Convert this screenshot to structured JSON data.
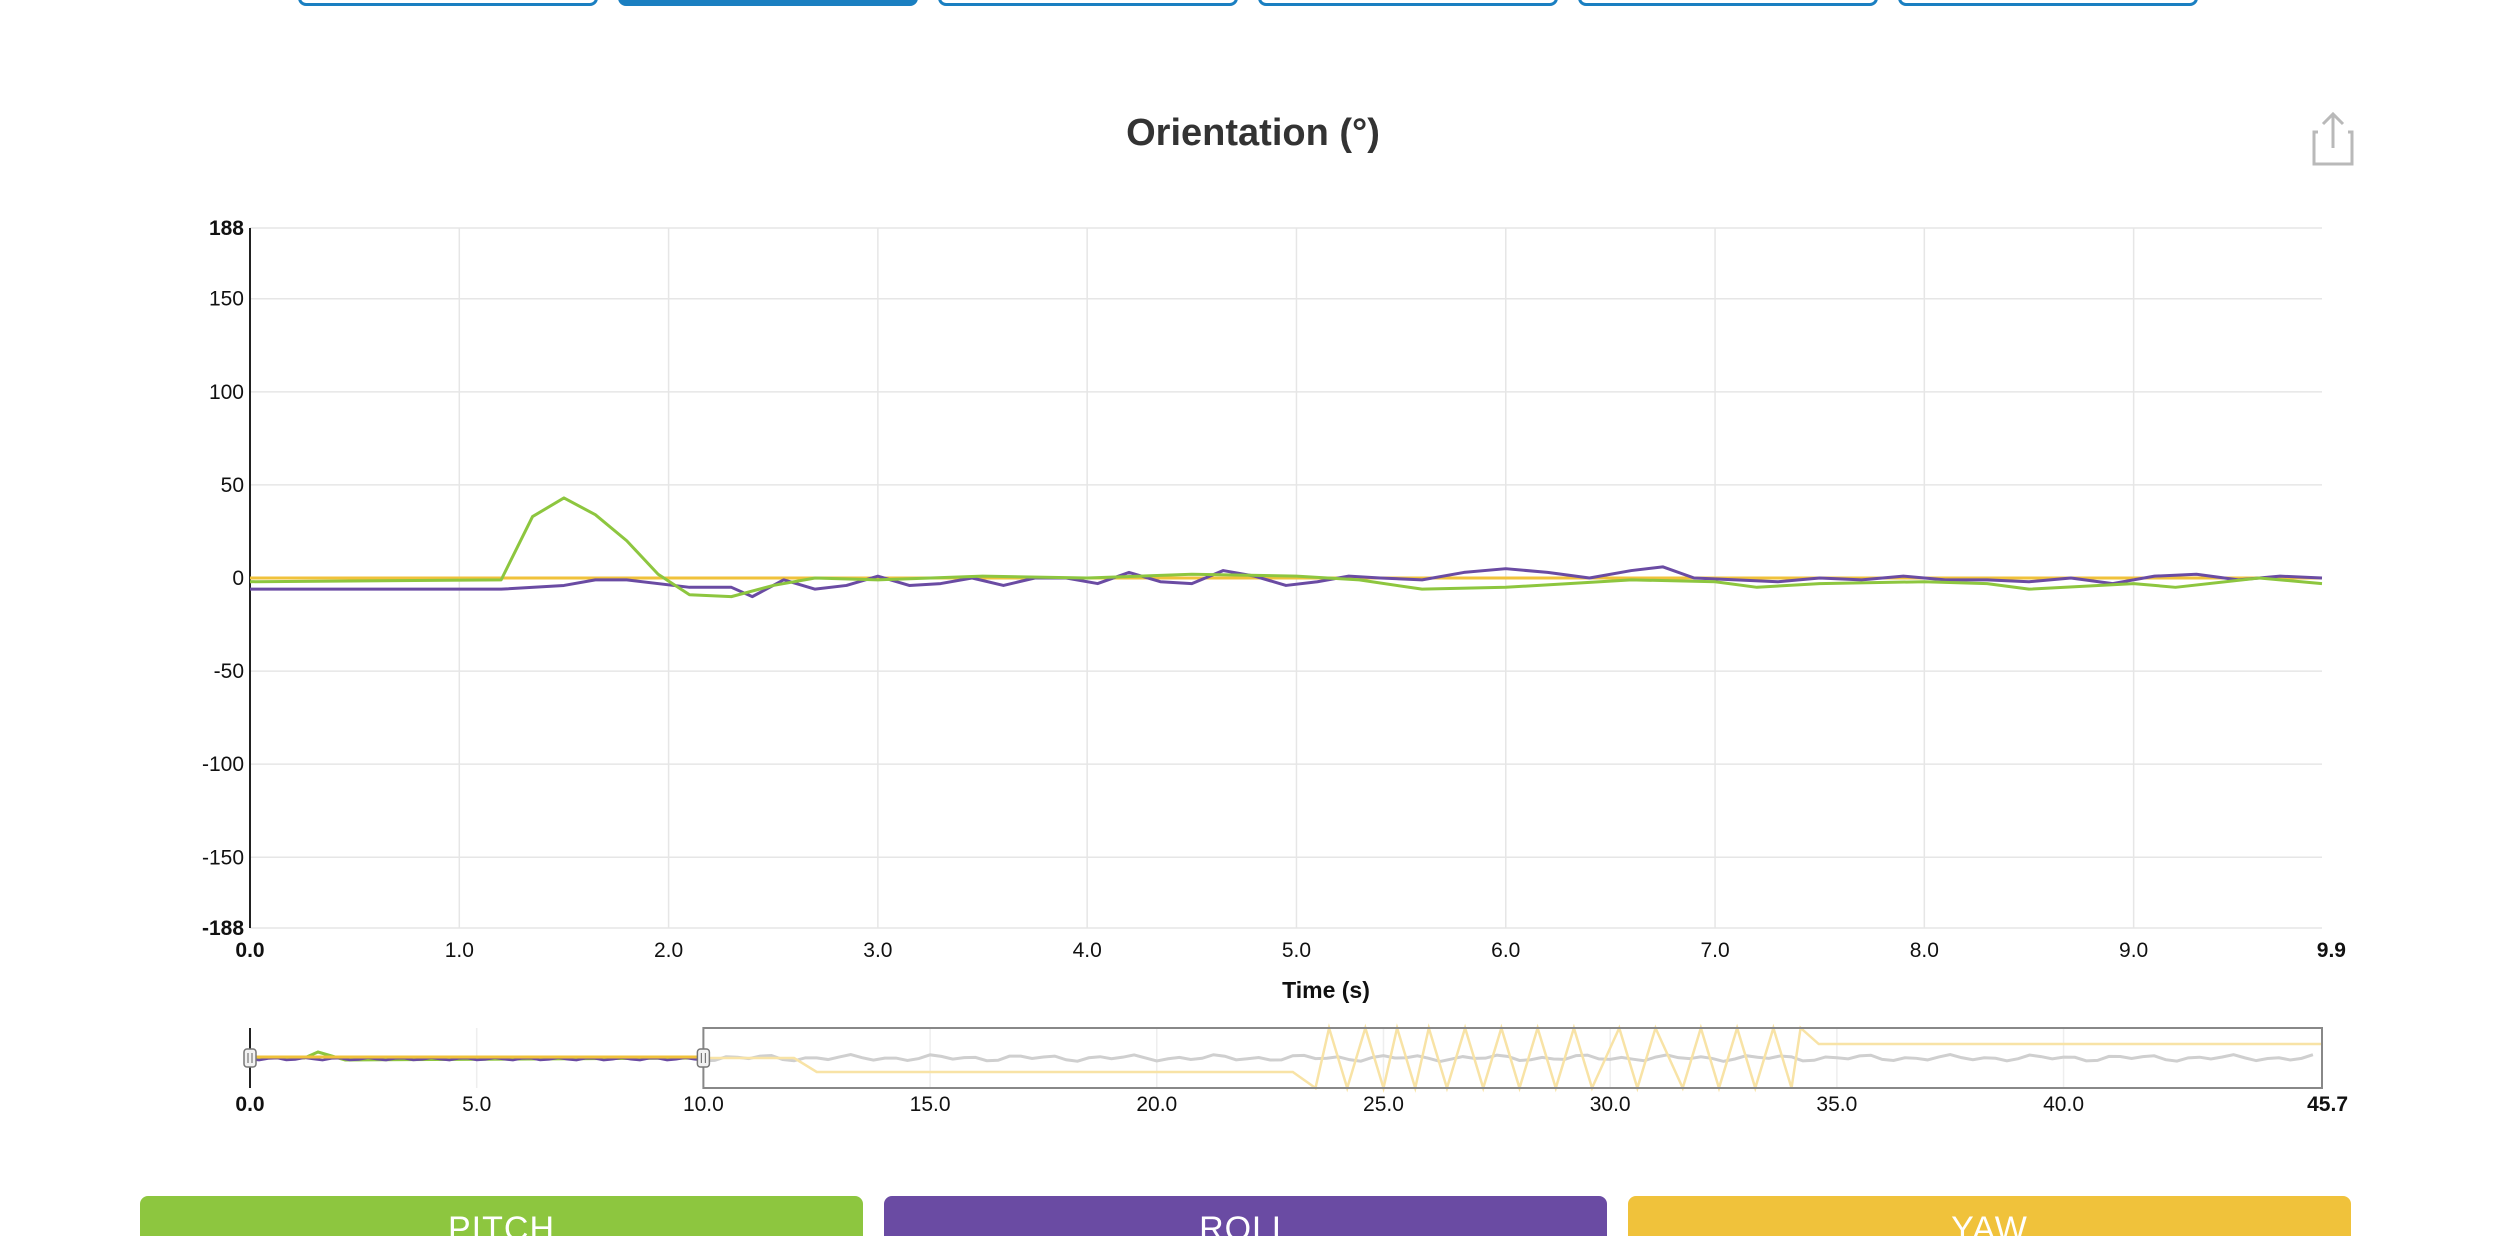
{
  "tabs": [
    {
      "active": false
    },
    {
      "active": true
    },
    {
      "active": false
    },
    {
      "active": false
    },
    {
      "active": false
    },
    {
      "active": false
    }
  ],
  "colors": {
    "tab_accent": "#1a7fc1",
    "pitch": "#8dc63f",
    "roll": "#6a4ba3",
    "yaw": "#f0c23b"
  },
  "chart_data": {
    "type": "line",
    "title": "Orientation (°)",
    "xlabel": "Time (s)",
    "ylabel": "",
    "xlim": [
      0.0,
      9.9
    ],
    "ylim": [
      -188,
      188
    ],
    "x_ticks": [
      "0.0",
      "1.0",
      "2.0",
      "3.0",
      "4.0",
      "5.0",
      "6.0",
      "7.0",
      "8.0",
      "9.0",
      "9.9"
    ],
    "x_tick_values": [
      0,
      1,
      2,
      3,
      4,
      5,
      6,
      7,
      8,
      9,
      9.9
    ],
    "y_ticks": [
      "188",
      "150",
      "100",
      "50",
      "0",
      "-50",
      "-100",
      "-150",
      "-188"
    ],
    "y_tick_values": [
      188,
      150,
      100,
      50,
      0,
      -50,
      -100,
      -150,
      -188
    ],
    "grid": true,
    "series": [
      {
        "color": "#8dc63f",
        "x": [
          0,
          1.2,
          1.35,
          1.5,
          1.65,
          1.8,
          1.95,
          2.1,
          2.3,
          2.5,
          2.7,
          3.0,
          3.5,
          4.0,
          4.5,
          5.0,
          5.3,
          5.6,
          6.0,
          6.3,
          6.6,
          7.0,
          7.2,
          7.5,
          8.0,
          8.3,
          8.5,
          9.0,
          9.2,
          9.6,
          9.9
        ],
        "y": [
          -2,
          -1,
          33,
          43,
          34,
          20,
          2,
          -9,
          -10,
          -4,
          0,
          -1,
          1,
          0,
          2,
          1,
          -1,
          -6,
          -5,
          -3,
          -1,
          -2,
          -5,
          -3,
          -2,
          -3,
          -6,
          -3,
          -5,
          0,
          -3
        ]
      },
      {
        "color": "#6a4ba3",
        "x": [
          0,
          1.2,
          1.5,
          1.65,
          1.8,
          2.1,
          2.3,
          2.4,
          2.55,
          2.7,
          2.85,
          3.0,
          3.15,
          3.3,
          3.45,
          3.6,
          3.75,
          3.9,
          4.05,
          4.2,
          4.35,
          4.5,
          4.65,
          4.8,
          4.95,
          5.1,
          5.25,
          5.4,
          5.6,
          5.8,
          6.0,
          6.2,
          6.4,
          6.6,
          6.75,
          6.9,
          7.1,
          7.3,
          7.5,
          7.7,
          7.9,
          8.1,
          8.3,
          8.5,
          8.7,
          8.9,
          9.1,
          9.3,
          9.5,
          9.7,
          9.9
        ],
        "y": [
          -6,
          -6,
          -4,
          -1,
          -1,
          -5,
          -5,
          -10,
          -1,
          -6,
          -4,
          1,
          -4,
          -3,
          0,
          -4,
          0,
          0,
          -3,
          3,
          -2,
          -3,
          4,
          1,
          -4,
          -2,
          1,
          0,
          -1,
          3,
          5,
          3,
          0,
          4,
          6,
          0,
          -1,
          -2,
          0,
          -1,
          1,
          -1,
          -1,
          -2,
          0,
          -3,
          1,
          2,
          -1,
          1,
          0
        ]
      },
      {
        "color": "#f0c23b",
        "x": [
          0,
          9.9
        ],
        "y": [
          0,
          0
        ]
      }
    ]
  },
  "navigator": {
    "x_ticks": [
      "0.0",
      "5.0",
      "10.0",
      "15.0",
      "20.0",
      "25.0",
      "30.0",
      "35.0",
      "40.0",
      "45.7"
    ],
    "x_tick_values": [
      0,
      5,
      10,
      15,
      20,
      25,
      30,
      35,
      40,
      45.7
    ],
    "range": [
      0,
      45.7
    ],
    "selected": [
      0,
      10
    ]
  },
  "buttons": {
    "pitch": "PITCH",
    "roll": "ROLL",
    "yaw": "YAW"
  }
}
